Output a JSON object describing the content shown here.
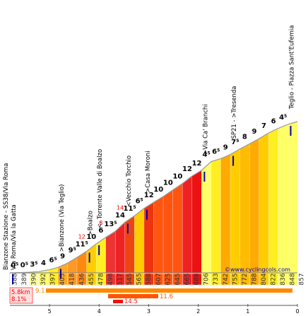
{
  "chart_data": {
    "type": "area",
    "xlabel": "",
    "ylabel": "",
    "x_axis_ticks": [
      "5",
      "4",
      "3",
      "2",
      "1",
      "0"
    ],
    "elevations": [
      "388",
      "389",
      "390",
      "392",
      "397",
      "405",
      "418",
      "436",
      "455",
      "478",
      "498",
      "517",
      "545",
      "565",
      "588",
      "607",
      "625",
      "645",
      "665",
      "688",
      "706",
      "733",
      "742",
      "755",
      "772",
      "788",
      "804",
      "822",
      "836",
      "848",
      "857"
    ],
    "segments": [
      {
        "grade": "0",
        "grade_dec": "5",
        "color": "#ffffff"
      },
      {
        "grade": "0",
        "grade_dec": "5",
        "color": "#ffffff"
      },
      {
        "grade": "3",
        "grade_dec": "5",
        "color": "#ffff99"
      },
      {
        "grade": "4",
        "grade_dec": "",
        "color": "#ffff66"
      },
      {
        "grade": "6",
        "grade_dec": "5",
        "color": "#ffee22"
      },
      {
        "grade": "9",
        "grade_dec": "",
        "color": "#ffaa22"
      },
      {
        "grade": "9",
        "grade_dec": "5",
        "color": "#ff9922"
      },
      {
        "grade": "11",
        "grade_dec": "5",
        "color": "#ff8811"
      },
      {
        "grade": "10",
        "grade_dec": "",
        "color": "#ffcc00"
      },
      {
        "grade": "6",
        "grade_dec": "",
        "color": "#ffee22"
      },
      {
        "grade": "13",
        "grade_dec": "5",
        "color": "#ee3333"
      },
      {
        "grade": "14",
        "grade_dec": "",
        "color": "#ee2222"
      },
      {
        "grade": "11",
        "grade_dec": "5",
        "color": "#ee4411"
      },
      {
        "grade": "6",
        "grade_dec": "5",
        "color": "#ffcc00"
      },
      {
        "grade": "12",
        "grade_dec": "",
        "color": "#ee3311"
      },
      {
        "grade": "10",
        "grade_dec": "",
        "color": "#ff5511"
      },
      {
        "grade": "10",
        "grade_dec": "",
        "color": "#ff5511"
      },
      {
        "grade": "10",
        "grade_dec": "",
        "color": "#ff5511"
      },
      {
        "grade": "12",
        "grade_dec": "",
        "color": "#ee2222"
      },
      {
        "grade": "12",
        "grade_dec": "",
        "color": "#ee1111"
      },
      {
        "grade": "4",
        "grade_dec": "5",
        "color": "#ffff66"
      },
      {
        "grade": "6",
        "grade_dec": "5",
        "color": "#ffee22"
      },
      {
        "grade": "9",
        "grade_dec": "",
        "color": "#ffaa00"
      },
      {
        "grade": "7",
        "grade_dec": "5",
        "color": "#ffcc00"
      },
      {
        "grade": "8",
        "grade_dec": "",
        "color": "#ffbb00"
      },
      {
        "grade": "9",
        "grade_dec": "",
        "color": "#ffaa00"
      },
      {
        "grade": "7",
        "grade_dec": "",
        "color": "#ffcc00"
      },
      {
        "grade": "6",
        "grade_dec": "",
        "color": "#ffee22"
      },
      {
        "grade": "4",
        "grade_dec": "5",
        "color": "#ffff66"
      },
      {
        "grade": "",
        "grade_dec": "",
        "color": "#ffff66"
      }
    ],
    "inline_markers": [
      {
        "text": "12",
        "segment": 7
      },
      {
        "text": "8",
        "segment": 9
      },
      {
        "text": "14",
        "segment": 11
      }
    ],
    "landmarks": [
      {
        "lines": [
          "Bianzone Stazione - SS38/Via Roma",
          "Via Roma/Via la Gatta"
        ],
        "segment": 0
      },
      {
        "lines": [
          ">Bianzone (Via Teglio)"
        ],
        "segment": 5
      },
      {
        "lines": [
          ">Boalzo"
        ],
        "segment": 8
      },
      {
        "lines": [
          "<- Torrente Valle di Boalzo"
        ],
        "segment": 9
      },
      {
        "lines": [
          "<Vecchio Torchio"
        ],
        "segment": 12
      },
      {
        "lines": [
          ">Casa Moroni"
        ],
        "segment": 14
      },
      {
        "lines": [
          ">Via Ca' Branchi"
        ],
        "segment": 20
      },
      {
        "lines": [
          "SP21 - >Tresenda"
        ],
        "segment": 23
      },
      {
        "lines": [
          "Teglio - Piazza Sant'Eufemia"
        ],
        "segment": 29
      }
    ],
    "stats": [
      {
        "text": "5.8km",
        "color": "#ff0000"
      },
      {
        "text": "8.1%",
        "color": "#ff0000"
      }
    ],
    "summary_bars": [
      {
        "value": "9.1",
        "color": "#ff8800"
      },
      {
        "value": "11.6",
        "color": "#ff5500"
      },
      {
        "value": "14.5",
        "color": "#ee1111"
      }
    ],
    "watermark": "©www.cyclingcols.com"
  }
}
